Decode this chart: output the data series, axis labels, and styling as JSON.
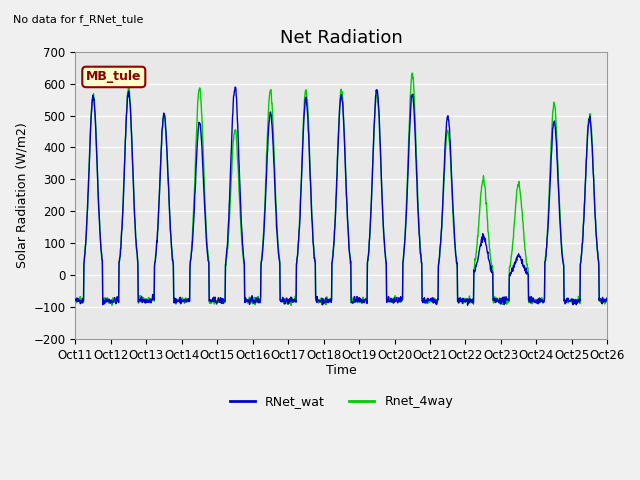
{
  "title": "Net Radiation",
  "ylabel": "Solar Radiation (W/m2)",
  "xlabel": "Time",
  "annotation": "No data for f_RNet_tule",
  "legend_box_label": "MB_tule",
  "legend1_label": "RNet_wat",
  "legend2_label": "Rnet_4way",
  "color_blue": "#0000cc",
  "color_green": "#00cc00",
  "ylim": [
    -200,
    700
  ],
  "yticks": [
    -200,
    -100,
    0,
    100,
    200,
    300,
    400,
    500,
    600,
    700
  ],
  "xtick_labels": [
    "Oct 11",
    "Oct 12",
    "Oct 13",
    "Oct 14",
    "Oct 15",
    "Oct 16",
    "Oct 17",
    "Oct 18",
    "Oct 19",
    "Oct 20",
    "Oct 21",
    "Oct 22",
    "Oct 23",
    "Oct 24",
    "Oct 25",
    "Oct 26"
  ],
  "n_days": 15,
  "points_per_day": 96,
  "night_value": -80,
  "day_peaks_blue": [
    560,
    575,
    505,
    480,
    590,
    510,
    550,
    565,
    580,
    565,
    495,
    120,
    60,
    480,
    490
  ],
  "day_peaks_green": [
    565,
    585,
    500,
    590,
    455,
    580,
    580,
    580,
    570,
    630,
    455,
    300,
    285,
    535,
    500
  ],
  "background_color": "#e8e8e8",
  "grid_color": "#ffffff",
  "fig_bg_color": "#f0f0f0",
  "title_fontsize": 13,
  "label_fontsize": 9,
  "tick_fontsize": 8.5
}
